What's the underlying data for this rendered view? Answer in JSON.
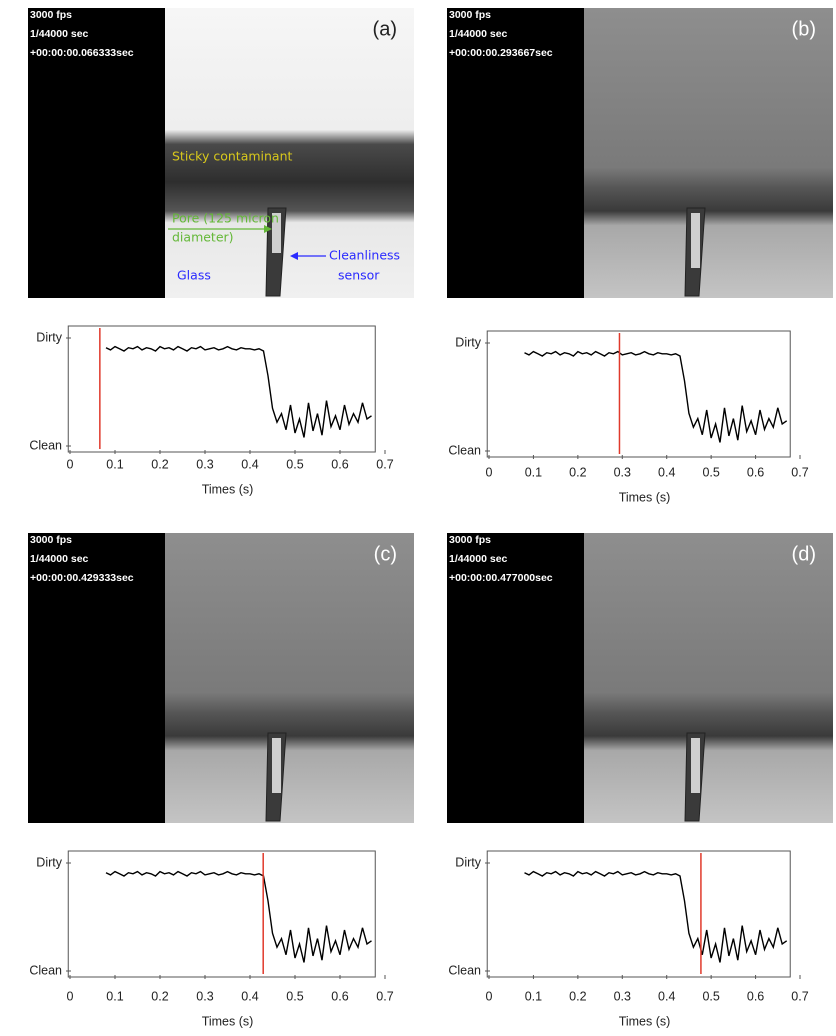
{
  "panels": [
    {
      "fps": "3000 fps",
      "shutter": "1/44000 sec",
      "timestamp": "+00:00:00.066333sec",
      "label": "(a)",
      "annotations": [
        "Sticky contaminant",
        "Pore (125 micron",
        "diameter)",
        "Glass",
        "Cleanliness",
        "sensor"
      ]
    },
    {
      "fps": "3000 fps",
      "shutter": "1/44000 sec",
      "timestamp": "+00:00:00.293667sec",
      "label": "(b)"
    },
    {
      "fps": "3000 fps",
      "shutter": "1/44000 sec",
      "timestamp": "+00:00:00.429333sec",
      "label": "(c)"
    },
    {
      "fps": "3000 fps",
      "shutter": "1/44000 sec",
      "timestamp": "+00:00:00.477000sec",
      "label": "(d)"
    }
  ],
  "chart_data": [
    {
      "type": "line",
      "xlabel": "Times (s)",
      "color": "#000000",
      "vline_x": 0.066333,
      "vline_color": "#e0392b",
      "xlim": [
        0,
        0.7
      ],
      "ylim": [
        0,
        1
      ],
      "xticks": [
        0,
        0.1,
        0.2,
        0.3,
        0.4,
        0.5,
        0.6,
        0.7
      ],
      "yticks": [
        {
          "value": 1,
          "label": "Dirty"
        },
        {
          "value": 0,
          "label": "Clean"
        }
      ],
      "x": [
        0.08,
        0.09,
        0.1,
        0.11,
        0.12,
        0.13,
        0.14,
        0.15,
        0.16,
        0.17,
        0.18,
        0.19,
        0.2,
        0.21,
        0.22,
        0.23,
        0.24,
        0.25,
        0.26,
        0.27,
        0.28,
        0.29,
        0.3,
        0.31,
        0.32,
        0.33,
        0.34,
        0.35,
        0.36,
        0.37,
        0.38,
        0.39,
        0.4,
        0.41,
        0.42,
        0.43,
        0.44,
        0.45,
        0.46,
        0.47,
        0.48,
        0.49,
        0.5,
        0.51,
        0.52,
        0.53,
        0.54,
        0.55,
        0.56,
        0.57,
        0.58,
        0.59,
        0.6,
        0.61,
        0.62,
        0.63,
        0.64,
        0.65,
        0.66,
        0.67
      ],
      "values": [
        0.91,
        0.89,
        0.92,
        0.9,
        0.88,
        0.91,
        0.9,
        0.92,
        0.89,
        0.91,
        0.9,
        0.88,
        0.92,
        0.9,
        0.91,
        0.89,
        0.92,
        0.9,
        0.88,
        0.91,
        0.9,
        0.92,
        0.89,
        0.9,
        0.91,
        0.89,
        0.9,
        0.92,
        0.9,
        0.89,
        0.91,
        0.9,
        0.9,
        0.89,
        0.9,
        0.88,
        0.65,
        0.35,
        0.22,
        0.3,
        0.15,
        0.38,
        0.12,
        0.25,
        0.08,
        0.4,
        0.14,
        0.3,
        0.1,
        0.42,
        0.18,
        0.28,
        0.15,
        0.38,
        0.2,
        0.3,
        0.22,
        0.4,
        0.25,
        0.28
      ]
    },
    {
      "type": "line",
      "xlabel": "Times (s)",
      "color": "#000000",
      "vline_x": 0.293667,
      "vline_color": "#e0392b",
      "xlim": [
        0,
        0.7
      ],
      "ylim": [
        0,
        1
      ],
      "xticks": [
        0,
        0.1,
        0.2,
        0.3,
        0.4,
        0.5,
        0.6,
        0.7
      ],
      "yticks": [
        {
          "value": 1,
          "label": "Dirty"
        },
        {
          "value": 0,
          "label": "Clean"
        }
      ],
      "x": [
        0.08,
        0.09,
        0.1,
        0.11,
        0.12,
        0.13,
        0.14,
        0.15,
        0.16,
        0.17,
        0.18,
        0.19,
        0.2,
        0.21,
        0.22,
        0.23,
        0.24,
        0.25,
        0.26,
        0.27,
        0.28,
        0.29,
        0.3,
        0.31,
        0.32,
        0.33,
        0.34,
        0.35,
        0.36,
        0.37,
        0.38,
        0.39,
        0.4,
        0.41,
        0.42,
        0.43,
        0.44,
        0.45,
        0.46,
        0.47,
        0.48,
        0.49,
        0.5,
        0.51,
        0.52,
        0.53,
        0.54,
        0.55,
        0.56,
        0.57,
        0.58,
        0.59,
        0.6,
        0.61,
        0.62,
        0.63,
        0.64,
        0.65,
        0.66,
        0.67
      ],
      "values": [
        0.91,
        0.89,
        0.92,
        0.9,
        0.88,
        0.91,
        0.9,
        0.92,
        0.89,
        0.91,
        0.9,
        0.88,
        0.92,
        0.9,
        0.91,
        0.89,
        0.92,
        0.9,
        0.88,
        0.91,
        0.9,
        0.92,
        0.89,
        0.9,
        0.91,
        0.89,
        0.9,
        0.92,
        0.9,
        0.89,
        0.91,
        0.9,
        0.9,
        0.89,
        0.9,
        0.88,
        0.65,
        0.35,
        0.22,
        0.3,
        0.15,
        0.38,
        0.12,
        0.25,
        0.08,
        0.4,
        0.14,
        0.3,
        0.1,
        0.42,
        0.18,
        0.28,
        0.15,
        0.38,
        0.2,
        0.3,
        0.22,
        0.4,
        0.25,
        0.28
      ]
    },
    {
      "type": "line",
      "xlabel": "Times (s)",
      "color": "#000000",
      "vline_x": 0.429333,
      "vline_color": "#e0392b",
      "xlim": [
        0,
        0.7
      ],
      "ylim": [
        0,
        1
      ],
      "xticks": [
        0,
        0.1,
        0.2,
        0.3,
        0.4,
        0.5,
        0.6,
        0.7
      ],
      "yticks": [
        {
          "value": 1,
          "label": "Dirty"
        },
        {
          "value": 0,
          "label": "Clean"
        }
      ],
      "x": [
        0.08,
        0.09,
        0.1,
        0.11,
        0.12,
        0.13,
        0.14,
        0.15,
        0.16,
        0.17,
        0.18,
        0.19,
        0.2,
        0.21,
        0.22,
        0.23,
        0.24,
        0.25,
        0.26,
        0.27,
        0.28,
        0.29,
        0.3,
        0.31,
        0.32,
        0.33,
        0.34,
        0.35,
        0.36,
        0.37,
        0.38,
        0.39,
        0.4,
        0.41,
        0.42,
        0.43,
        0.44,
        0.45,
        0.46,
        0.47,
        0.48,
        0.49,
        0.5,
        0.51,
        0.52,
        0.53,
        0.54,
        0.55,
        0.56,
        0.57,
        0.58,
        0.59,
        0.6,
        0.61,
        0.62,
        0.63,
        0.64,
        0.65,
        0.66,
        0.67
      ],
      "values": [
        0.91,
        0.89,
        0.92,
        0.9,
        0.88,
        0.91,
        0.9,
        0.92,
        0.89,
        0.91,
        0.9,
        0.88,
        0.92,
        0.9,
        0.91,
        0.89,
        0.92,
        0.9,
        0.88,
        0.91,
        0.9,
        0.92,
        0.89,
        0.9,
        0.91,
        0.89,
        0.9,
        0.92,
        0.9,
        0.89,
        0.91,
        0.9,
        0.9,
        0.89,
        0.9,
        0.88,
        0.65,
        0.35,
        0.22,
        0.3,
        0.15,
        0.38,
        0.12,
        0.25,
        0.08,
        0.4,
        0.14,
        0.3,
        0.1,
        0.42,
        0.18,
        0.28,
        0.15,
        0.38,
        0.2,
        0.3,
        0.22,
        0.4,
        0.25,
        0.28
      ]
    },
    {
      "type": "line",
      "xlabel": "Times (s)",
      "color": "#000000",
      "vline_x": 0.477,
      "vline_color": "#e0392b",
      "xlim": [
        0,
        0.7
      ],
      "ylim": [
        0,
        1
      ],
      "xticks": [
        0,
        0.1,
        0.2,
        0.3,
        0.4,
        0.5,
        0.6,
        0.7
      ],
      "yticks": [
        {
          "value": 1,
          "label": "Dirty"
        },
        {
          "value": 0,
          "label": "Clean"
        }
      ],
      "x": [
        0.08,
        0.09,
        0.1,
        0.11,
        0.12,
        0.13,
        0.14,
        0.15,
        0.16,
        0.17,
        0.18,
        0.19,
        0.2,
        0.21,
        0.22,
        0.23,
        0.24,
        0.25,
        0.26,
        0.27,
        0.28,
        0.29,
        0.3,
        0.31,
        0.32,
        0.33,
        0.34,
        0.35,
        0.36,
        0.37,
        0.38,
        0.39,
        0.4,
        0.41,
        0.42,
        0.43,
        0.44,
        0.45,
        0.46,
        0.47,
        0.48,
        0.49,
        0.5,
        0.51,
        0.52,
        0.53,
        0.54,
        0.55,
        0.56,
        0.57,
        0.58,
        0.59,
        0.6,
        0.61,
        0.62,
        0.63,
        0.64,
        0.65,
        0.66,
        0.67
      ],
      "values": [
        0.91,
        0.89,
        0.92,
        0.9,
        0.88,
        0.91,
        0.9,
        0.92,
        0.89,
        0.91,
        0.9,
        0.88,
        0.92,
        0.9,
        0.91,
        0.89,
        0.92,
        0.9,
        0.88,
        0.91,
        0.9,
        0.92,
        0.89,
        0.9,
        0.91,
        0.89,
        0.9,
        0.92,
        0.9,
        0.89,
        0.91,
        0.9,
        0.9,
        0.89,
        0.9,
        0.88,
        0.65,
        0.35,
        0.22,
        0.3,
        0.15,
        0.38,
        0.12,
        0.25,
        0.08,
        0.4,
        0.14,
        0.3,
        0.1,
        0.42,
        0.18,
        0.28,
        0.15,
        0.38,
        0.2,
        0.3,
        0.22,
        0.4,
        0.25,
        0.28
      ]
    }
  ]
}
